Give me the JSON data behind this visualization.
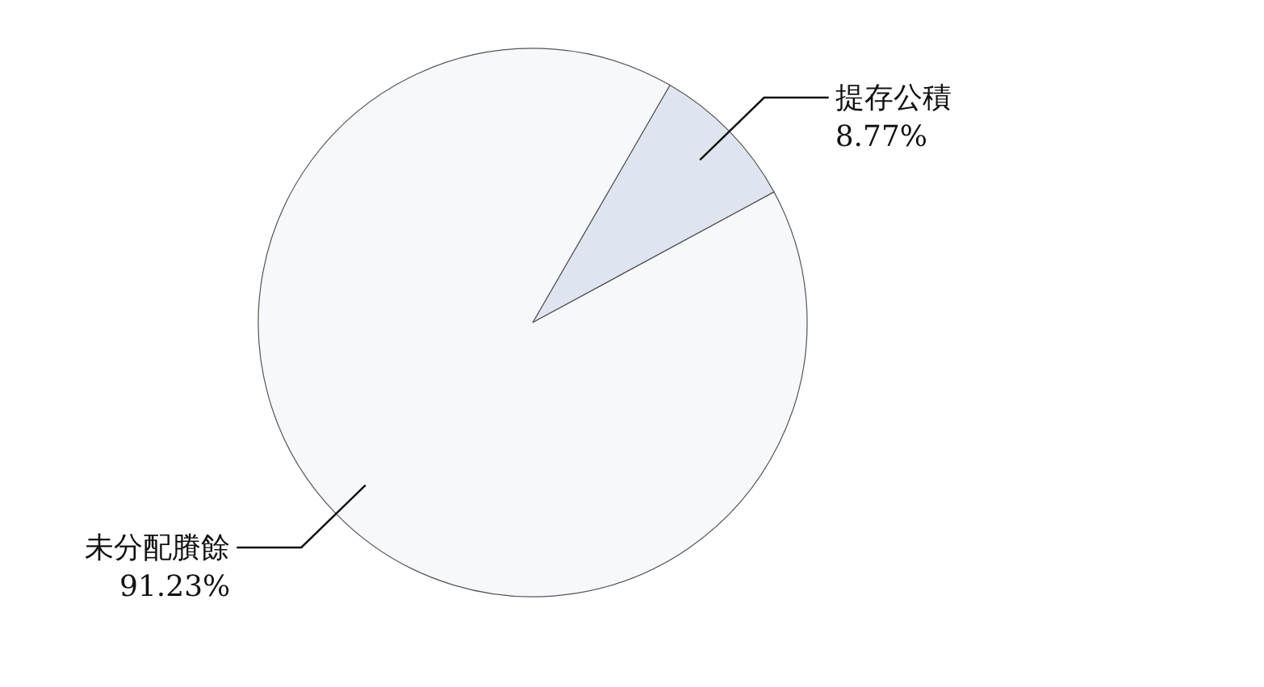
{
  "chart_data": {
    "type": "pie",
    "categories": [
      "提存公積",
      "未分配賸餘"
    ],
    "values": [
      8.77,
      91.23
    ],
    "colors": [
      "#dfe5f0",
      "#f6f8fc"
    ],
    "value_labels": [
      "8.77%",
      "91.23%"
    ]
  }
}
